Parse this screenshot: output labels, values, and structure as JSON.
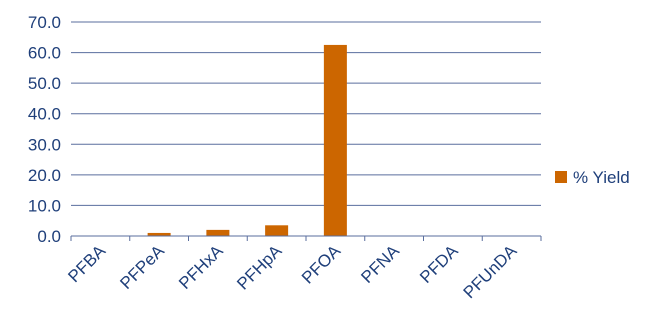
{
  "chart_data": {
    "type": "bar",
    "categories": [
      "PFBA",
      "PFPeA",
      "PFHxA",
      "PFHpA",
      "PFOA",
      "PFNA",
      "PFDA",
      "PFUnDA"
    ],
    "series": [
      {
        "name": "% Yield",
        "values": [
          0.0,
          1.0,
          2.0,
          3.5,
          62.5,
          0.0,
          0.0,
          0.0
        ]
      }
    ],
    "ylim": [
      0,
      70
    ],
    "yticks": [
      "0.0",
      "10.0",
      "20.0",
      "30.0",
      "40.0",
      "50.0",
      "60.0",
      "70.0"
    ],
    "grid": true,
    "legend": "right",
    "colors": {
      "bar": "#cc6600",
      "axis": "#5a6e9e",
      "grid": "#5a6e9e",
      "text": "#1f3f7a"
    }
  }
}
